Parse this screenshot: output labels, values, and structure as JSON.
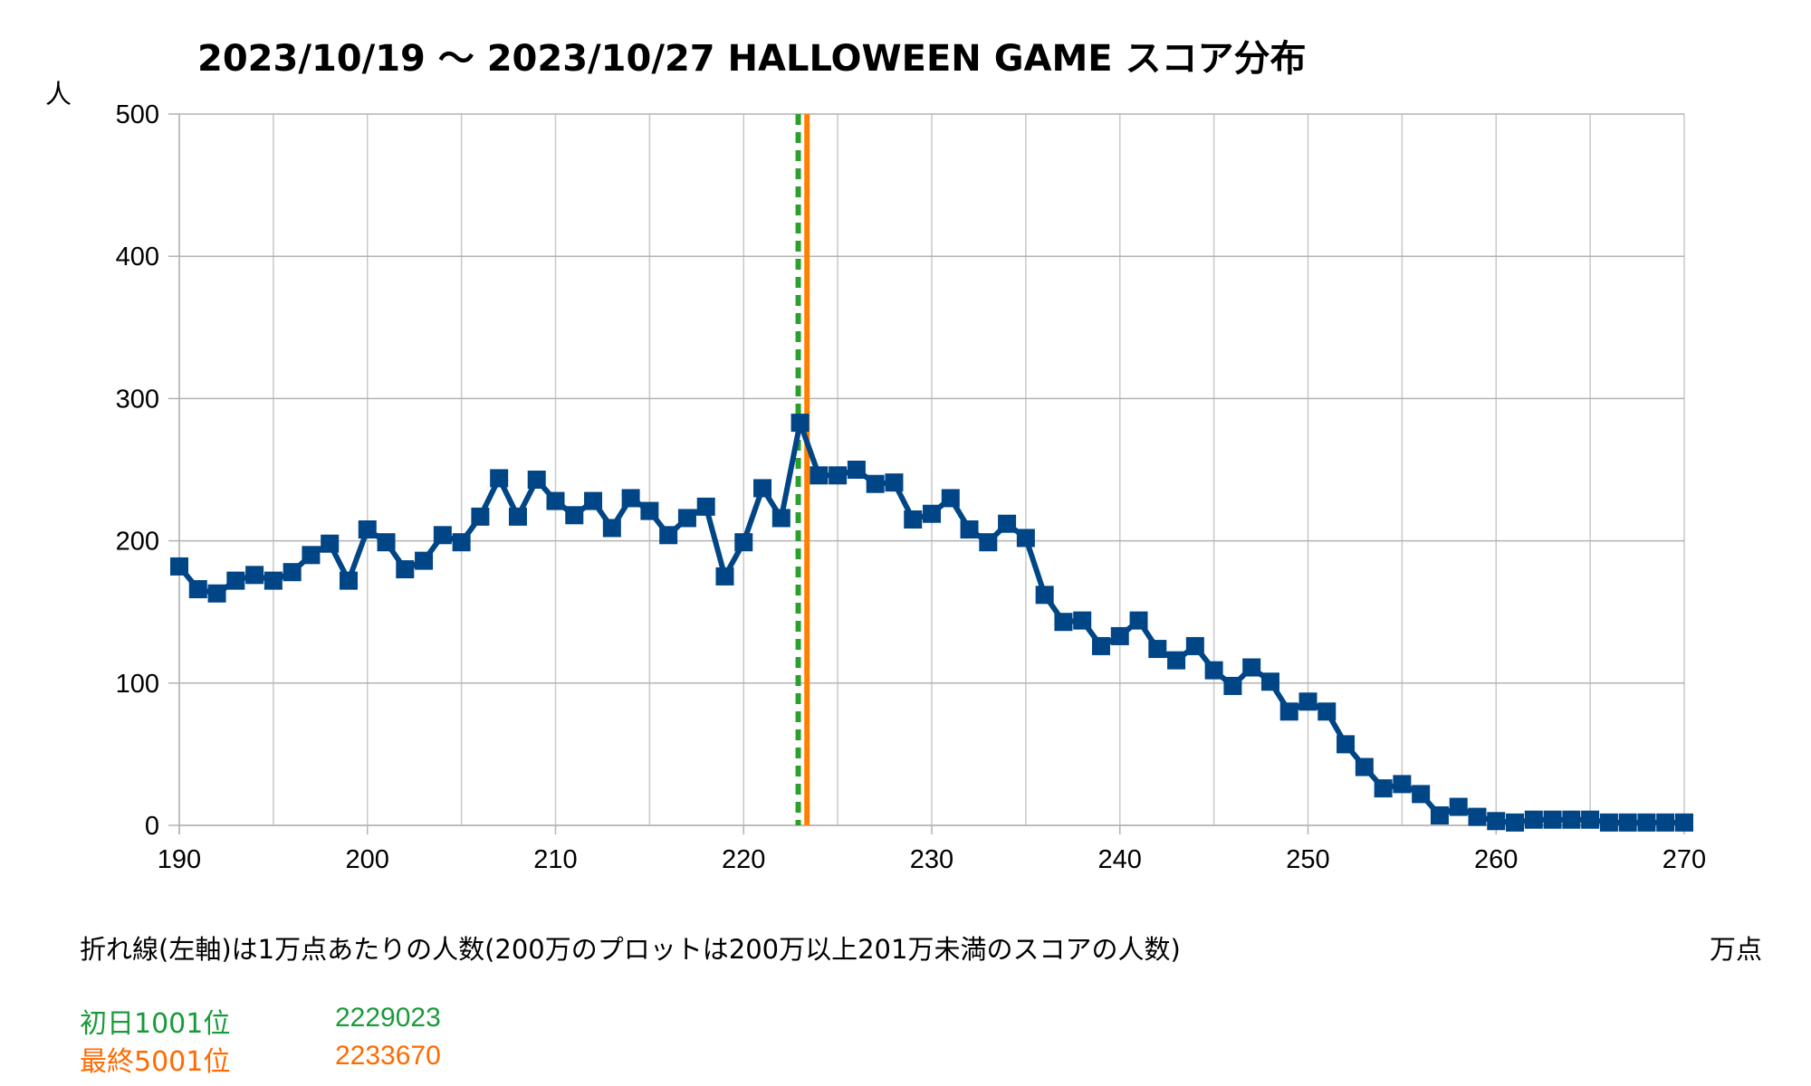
{
  "chart_data": {
    "type": "line",
    "title": "2023/10/19 ～ 2023/10/27 HALLOWEEN GAME スコア分布",
    "ylabel": "人",
    "xlabel": "万点",
    "xlim": [
      190,
      270
    ],
    "ylim": [
      0,
      500
    ],
    "x_ticks": [
      190,
      200,
      210,
      220,
      230,
      240,
      250,
      260,
      270
    ],
    "y_ticks": [
      0,
      100,
      200,
      300,
      400,
      500
    ],
    "grid": true,
    "x": [
      190,
      191,
      192,
      193,
      194,
      195,
      196,
      197,
      198,
      199,
      200,
      201,
      202,
      203,
      204,
      205,
      206,
      207,
      208,
      209,
      210,
      211,
      212,
      213,
      214,
      215,
      216,
      217,
      218,
      219,
      220,
      221,
      222,
      223,
      224,
      225,
      226,
      227,
      228,
      229,
      230,
      231,
      232,
      233,
      234,
      235,
      236,
      237,
      238,
      239,
      240,
      241,
      242,
      243,
      244,
      245,
      246,
      247,
      248,
      249,
      250,
      251,
      252,
      253,
      254,
      255,
      256,
      257,
      258,
      259,
      260,
      261,
      262,
      263,
      264,
      265,
      266,
      267,
      268,
      269,
      270
    ],
    "series": [
      {
        "color": "#004586",
        "values": [
          182,
          166,
          163,
          172,
          176,
          172,
          178,
          190,
          198,
          172,
          208,
          199,
          180,
          186,
          204,
          199,
          217,
          244,
          217,
          243,
          228,
          218,
          228,
          209,
          230,
          221,
          204,
          216,
          224,
          175,
          199,
          237,
          216,
          283,
          246,
          246,
          250,
          240,
          241,
          215,
          219,
          230,
          208,
          199,
          212,
          202,
          162,
          143,
          144,
          126,
          133,
          144,
          124,
          116,
          126,
          109,
          98,
          111,
          101,
          80,
          87,
          80,
          57,
          41,
          26,
          29,
          22,
          7,
          13,
          6,
          3,
          2,
          4,
          4,
          4,
          4,
          2,
          2,
          2,
          2,
          2
        ]
      }
    ],
    "vlines": [
      {
        "x": 222.9023,
        "color": "#2ca02c",
        "style": "dashed"
      },
      {
        "x": 223.367,
        "color": "#ff8000",
        "style": "solid"
      }
    ]
  },
  "note": "折れ線(左軸)は1万点あたりの人数(200万のプロットは200万以上201万未満のスコアの人数)",
  "legend": [
    {
      "label": "初日1001位",
      "value": "2229023",
      "color": "#1a9a3a"
    },
    {
      "label": "最終5001位",
      "value": "2233670",
      "color": "#ff6a00"
    }
  ]
}
